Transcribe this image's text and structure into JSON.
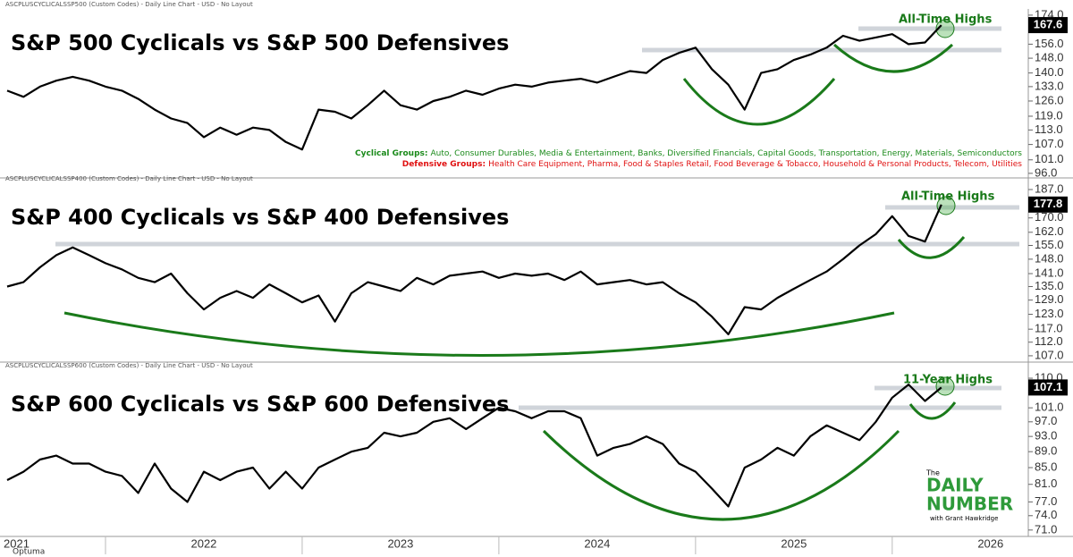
{
  "chart_data": [
    {
      "type": "line",
      "subtitle": "ASCPLUSCYCLICALSSP500 (Custom Codes) - Daily Line Chart - USD - No Layout",
      "title": "S&P 500 Cyclicals vs S&P 500 Defensives",
      "annotation": "All-Time Highs",
      "notes": [
        {
          "label": "Cyclical Groups:",
          "text": "Auto, Consumer Durables, Media & Entertainment, Banks, Diversified Financials, Capital Goods, Transportation, Energy, Materials, Semiconductors",
          "color": "#1a8a1a"
        },
        {
          "label": "Defensive Groups:",
          "text": "Health Care Equipment, Pharma, Food & Staples Retail, Food Beverage & Tobacco, Household & Personal Products, Telecom, Utilities",
          "color": "#e01010"
        }
      ],
      "log_scale": true,
      "ylim": [
        95.0,
        177.5
      ],
      "color": "#000000",
      "current_value": 167.6,
      "yticks": [
        {
          "value": 174,
          "label": "174.0"
        },
        {
          "value": 156,
          "label": "156.0"
        },
        {
          "value": 148,
          "label": "148.0"
        },
        {
          "value": 140,
          "label": "140.0"
        },
        {
          "value": 133,
          "label": "133.0"
        },
        {
          "value": 126,
          "label": "126.0"
        },
        {
          "value": 119,
          "label": "119.0"
        },
        {
          "value": 113,
          "label": "113.0"
        },
        {
          "value": 107,
          "label": "107.0"
        },
        {
          "value": 101,
          "label": "101.0"
        },
        {
          "value": 96,
          "label": "96.0"
        }
      ],
      "values": [
        131,
        128,
        133,
        136,
        138,
        136,
        133,
        131,
        127,
        122,
        118,
        116,
        110,
        114,
        111,
        114,
        113,
        108,
        105,
        122,
        121,
        118,
        124,
        131,
        124,
        122,
        126,
        128,
        131,
        129,
        132,
        134,
        133,
        135,
        136,
        137,
        135,
        138,
        141,
        140,
        147,
        151,
        154,
        142,
        134,
        122,
        140,
        142,
        147,
        150,
        154,
        161,
        158,
        160,
        162,
        156,
        157,
        167.6
      ]
    },
    {
      "type": "line",
      "subtitle": "ASCPLUSCYCLICALSSP400 (Custom Codes) - Daily Line Chart - USD - No Layout",
      "title": "S&P 400 Cyclicals vs S&P 400 Defensives",
      "annotation": "All-Time Highs",
      "log_scale": true,
      "ylim": [
        105.7,
        190.4
      ],
      "color": "#000000",
      "current_value": 177.8,
      "yticks": [
        {
          "value": 187,
          "label": "187.0"
        },
        {
          "value": 170,
          "label": "170.0"
        },
        {
          "value": 162,
          "label": "162.0"
        },
        {
          "value": 155,
          "label": "155.0"
        },
        {
          "value": 148,
          "label": "148.0"
        },
        {
          "value": 141,
          "label": "141.0"
        },
        {
          "value": 135,
          "label": "135.0"
        },
        {
          "value": 129,
          "label": "129.0"
        },
        {
          "value": 123,
          "label": "123.0"
        },
        {
          "value": 117,
          "label": "117.0"
        },
        {
          "value": 112,
          "label": "112.0"
        },
        {
          "value": 107,
          "label": "107.0"
        }
      ],
      "values": [
        135,
        137,
        144,
        150,
        154,
        150,
        146,
        143,
        139,
        137,
        141,
        132,
        125,
        130,
        133,
        130,
        136,
        132,
        128,
        131,
        120,
        132,
        137,
        135,
        133,
        139,
        136,
        140,
        141,
        142,
        139,
        141,
        140,
        141,
        138,
        142,
        136,
        137,
        138,
        136,
        137,
        132,
        128,
        122,
        115,
        126,
        125,
        130,
        134,
        138,
        142,
        148,
        155,
        161,
        171,
        160,
        157,
        177.8
      ]
    },
    {
      "type": "line",
      "subtitle": "ASCPLUSCYCLICALSSP600 (Custom Codes) - Daily Line Chart - USD - No Layout",
      "title": "S&P 600 Cyclicals vs S&P 600 Defensives",
      "annotation": "11-Year Highs",
      "log_scale": true,
      "ylim": [
        69.7,
        112.3
      ],
      "color": "#000000",
      "current_value": 107.1,
      "yticks": [
        {
          "value": 110,
          "label": "110.0"
        },
        {
          "value": 101,
          "label": "101.0"
        },
        {
          "value": 97,
          "label": "97.0"
        },
        {
          "value": 93,
          "label": "93.0"
        },
        {
          "value": 89,
          "label": "89.0"
        },
        {
          "value": 85,
          "label": "85.0"
        },
        {
          "value": 81,
          "label": "81.0"
        },
        {
          "value": 77,
          "label": "77.0"
        },
        {
          "value": 74,
          "label": "74.0"
        },
        {
          "value": 71,
          "label": "71.0"
        }
      ],
      "categories": [
        "2021",
        null,
        null,
        null,
        null,
        null,
        null,
        null,
        null,
        null,
        null,
        null,
        "2022",
        null,
        null,
        null,
        null,
        null,
        null,
        null,
        null,
        null,
        null,
        null,
        "2023",
        null,
        null,
        null,
        null,
        null,
        null,
        null,
        null,
        null,
        null,
        null,
        "2024",
        null,
        null,
        null,
        null,
        null,
        null,
        null,
        null,
        null,
        null,
        null,
        "2025",
        null,
        null,
        null,
        null,
        null,
        null,
        null,
        null,
        null,
        null,
        null,
        "2026",
        null,
        null
      ],
      "values": [
        82,
        84,
        87,
        88,
        86,
        86,
        84,
        83,
        79,
        86,
        80,
        77,
        84,
        82,
        84,
        85,
        80,
        84,
        80,
        85,
        87,
        89,
        90,
        94,
        93,
        94,
        97,
        98,
        95,
        98,
        101,
        100,
        98,
        100,
        100,
        98,
        88,
        90,
        91,
        93,
        91,
        86,
        84,
        80,
        76,
        85,
        87,
        90,
        88,
        93,
        96,
        94,
        92,
        97,
        104,
        108,
        103,
        107.1,
        null,
        null,
        null,
        null,
        null
      ]
    }
  ],
  "logo": {
    "small": "The",
    "word1": "DAILY",
    "word2": "NUMBER",
    "byline": "with Grant Hawkridge"
  },
  "footer": "Optuma"
}
